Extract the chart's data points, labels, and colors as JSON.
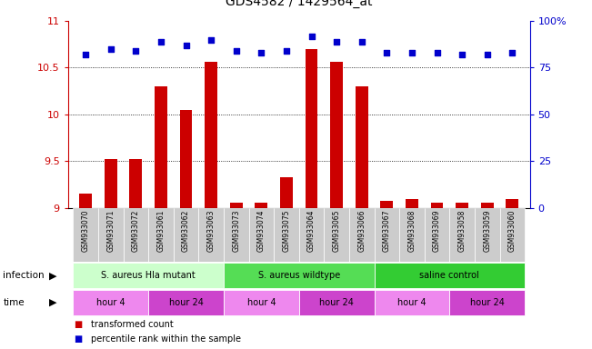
{
  "title": "GDS4582 / 1429564_at",
  "samples": [
    "GSM933070",
    "GSM933071",
    "GSM933072",
    "GSM933061",
    "GSM933062",
    "GSM933063",
    "GSM933073",
    "GSM933074",
    "GSM933075",
    "GSM933064",
    "GSM933065",
    "GSM933066",
    "GSM933067",
    "GSM933068",
    "GSM933069",
    "GSM933058",
    "GSM933059",
    "GSM933060"
  ],
  "bar_values": [
    9.15,
    9.52,
    9.52,
    10.3,
    10.05,
    10.56,
    9.06,
    9.06,
    9.33,
    10.7,
    10.56,
    10.3,
    9.08,
    9.1,
    9.06,
    9.06,
    9.06,
    9.1
  ],
  "dot_values": [
    82,
    85,
    84,
    89,
    87,
    90,
    84,
    83,
    84,
    92,
    89,
    89,
    83,
    83,
    83,
    82,
    82,
    83
  ],
  "ylim_left": [
    9.0,
    11.0
  ],
  "ylim_right": [
    0,
    100
  ],
  "yticks_left": [
    9.0,
    9.5,
    10.0,
    10.5,
    11.0
  ],
  "yticks_right": [
    0,
    25,
    50,
    75,
    100
  ],
  "bar_color": "#cc0000",
  "dot_color": "#0000cc",
  "bar_baseline": 9.0,
  "infection_groups": [
    {
      "label": "S. aureus Hla mutant",
      "start": 0,
      "end": 6,
      "color": "#ccffcc"
    },
    {
      "label": "S. aureus wildtype",
      "start": 6,
      "end": 12,
      "color": "#55dd55"
    },
    {
      "label": "saline control",
      "start": 12,
      "end": 18,
      "color": "#33cc33"
    }
  ],
  "time_groups": [
    {
      "label": "hour 4",
      "start": 0,
      "end": 3,
      "color": "#ee88ee"
    },
    {
      "label": "hour 24",
      "start": 3,
      "end": 6,
      "color": "#cc44cc"
    },
    {
      "label": "hour 4",
      "start": 6,
      "end": 9,
      "color": "#ee88ee"
    },
    {
      "label": "hour 24",
      "start": 9,
      "end": 12,
      "color": "#cc44cc"
    },
    {
      "label": "hour 4",
      "start": 12,
      "end": 15,
      "color": "#ee88ee"
    },
    {
      "label": "hour 24",
      "start": 15,
      "end": 18,
      "color": "#cc44cc"
    }
  ],
  "infection_label": "infection",
  "time_label": "time",
  "legend_red_label": "transformed count",
  "legend_blue_label": "percentile rank within the sample",
  "sample_bg_color": "#cccccc",
  "bg_color": "#ffffff"
}
